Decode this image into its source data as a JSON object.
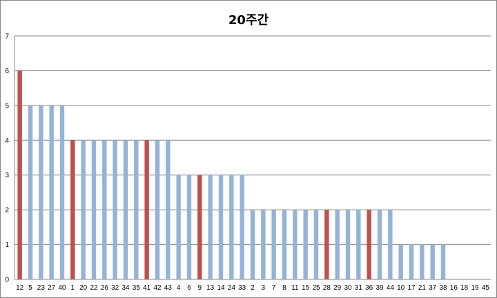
{
  "chart_data": {
    "type": "bar",
    "title": "20주간",
    "xlabel": "",
    "ylabel": "",
    "ylim": [
      0,
      7
    ],
    "yticks": [
      0,
      1,
      2,
      3,
      4,
      5,
      6,
      7
    ],
    "grid": true,
    "legend": "none",
    "categories": [
      "12",
      "5",
      "23",
      "27",
      "40",
      "1",
      "20",
      "22",
      "26",
      "32",
      "34",
      "35",
      "41",
      "42",
      "43",
      "4",
      "6",
      "9",
      "13",
      "14",
      "24",
      "33",
      "2",
      "3",
      "7",
      "8",
      "11",
      "15",
      "25",
      "28",
      "29",
      "30",
      "31",
      "36",
      "39",
      "44",
      "10",
      "17",
      "21",
      "37",
      "38",
      "16",
      "18",
      "19",
      "45"
    ],
    "values": [
      6,
      5,
      5,
      5,
      5,
      4,
      4,
      4,
      4,
      4,
      4,
      4,
      4,
      4,
      4,
      3,
      3,
      3,
      3,
      3,
      3,
      3,
      2,
      2,
      2,
      2,
      2,
      2,
      2,
      2,
      2,
      2,
      2,
      2,
      2,
      2,
      1,
      1,
      1,
      1,
      1,
      0,
      0,
      0,
      0
    ],
    "highlighted": [
      "12",
      "1",
      "41",
      "9",
      "28",
      "36"
    ],
    "colors": {
      "bar": "#95B3D7",
      "bar_highlight": "#C0504D",
      "gridline": "#868686",
      "axis": "#868686"
    }
  }
}
